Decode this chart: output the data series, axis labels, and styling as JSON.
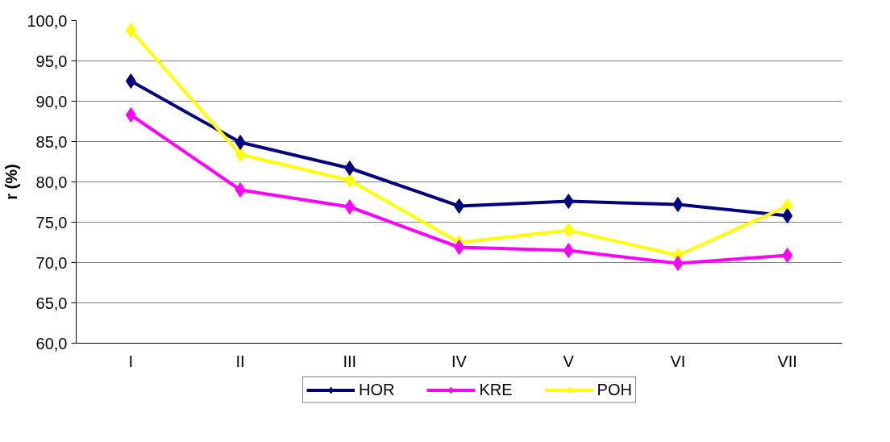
{
  "chart_data": {
    "type": "line",
    "ylabel": "r (%)",
    "categories": [
      "I",
      "II",
      "III",
      "IV",
      "V",
      "VI",
      "VII"
    ],
    "series": [
      {
        "name": "HOR",
        "color": "#000080",
        "values": [
          92.5,
          84.9,
          81.7,
          77.0,
          77.6,
          77.2,
          75.8
        ]
      },
      {
        "name": "KRE",
        "color": "#ff00ff",
        "values": [
          88.3,
          79.0,
          76.9,
          71.9,
          71.5,
          69.9,
          70.9
        ]
      },
      {
        "name": "POH",
        "color": "#ffff00",
        "values": [
          98.8,
          83.4,
          80.2,
          72.5,
          74.0,
          70.9,
          77.0
        ]
      }
    ],
    "ylim": [
      60,
      100
    ],
    "yticks": [
      {
        "value": 60,
        "label": "60,0"
      },
      {
        "value": 65,
        "label": "65,0"
      },
      {
        "value": 70,
        "label": "70,0"
      },
      {
        "value": 75,
        "label": "75,0"
      },
      {
        "value": 80,
        "label": "80,0"
      },
      {
        "value": 85,
        "label": "85,0"
      },
      {
        "value": 90,
        "label": "90,0"
      },
      {
        "value": 95,
        "label": "95,0"
      },
      {
        "value": 100,
        "label": "100,0"
      }
    ],
    "grid": "y",
    "legend": "bottom",
    "marker": "diamond",
    "line_style": "solid"
  }
}
